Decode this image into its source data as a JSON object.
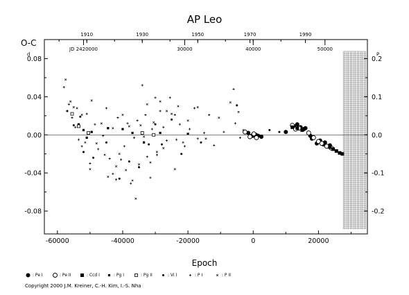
{
  "chart_data": {
    "type": "scatter",
    "title": "AP  Leo",
    "xlabel": "Epoch",
    "ylabel": "O-C",
    "xlim": [
      -64000,
      35000
    ],
    "ylim": [
      -0.104,
      0.1
    ],
    "x_ticks": [
      -60000,
      -40000,
      -20000,
      0,
      20000
    ],
    "x_tick_labels": [
      "-60000",
      "-40000",
      "-20000",
      "0",
      "20000"
    ],
    "y_ticks": [
      0.08,
      0.04,
      0.0,
      -0.04,
      -0.08
    ],
    "y_tick_labels": [
      "0.08",
      "0.04",
      "0.00",
      "-0.04",
      "-0.08"
    ],
    "y_left_superscript": "d",
    "y_right_ticks": [
      0.2,
      0.1,
      0.0,
      -0.1,
      -0.2
    ],
    "y_right_tick_labels": [
      "0.2",
      "0.1",
      "0.0",
      "-0.1",
      "-0.2"
    ],
    "y_right_superscript": "P",
    "top_year_ticks": {
      "epochs": [
        -51000,
        -34000,
        -17000,
        -1000,
        16000
      ],
      "labels": [
        "1910",
        "1930",
        "1950",
        "1970",
        "1990"
      ]
    },
    "top_jd_ticks": {
      "epochs": [
        -52000,
        -21000,
        0,
        22000
      ],
      "labels": [
        "JD 2420000",
        "30000",
        "40000",
        "50000"
      ]
    },
    "future_region_start": 27600,
    "grid": false,
    "series": [
      {
        "name": ": Pe I",
        "marker": "filled-circle",
        "points": [
          [
            -1500,
            0.002
          ],
          [
            -500,
            -0.001
          ],
          [
            0,
            -0.001
          ],
          [
            800,
            0.0
          ],
          [
            1500,
            -0.001
          ],
          [
            2500,
            -0.002
          ],
          [
            10000,
            0.003
          ],
          [
            12500,
            0.009
          ],
          [
            13500,
            0.011
          ],
          [
            14500,
            0.008
          ],
          [
            15500,
            0.006
          ],
          [
            16000,
            0.007
          ],
          [
            17500,
            -0.001
          ],
          [
            18000,
            -0.004
          ],
          [
            19500,
            -0.009
          ],
          [
            20500,
            -0.006
          ],
          [
            21500,
            -0.01
          ],
          [
            22000,
            -0.008
          ],
          [
            23500,
            -0.011
          ]
        ]
      },
      {
        "name": ": Pe II",
        "marker": "open-circle",
        "points": [
          [
            -2500,
            0.003
          ],
          [
            -1000,
            -0.002
          ],
          [
            200,
            0.001
          ],
          [
            1000,
            -0.003
          ],
          [
            12000,
            0.01
          ],
          [
            13000,
            0.006
          ],
          [
            14000,
            0.007
          ],
          [
            17000,
            0.002
          ],
          [
            18500,
            -0.003
          ],
          [
            20000,
            -0.007
          ],
          [
            21000,
            -0.009
          ],
          [
            22500,
            -0.012
          ],
          [
            24000,
            -0.014
          ]
        ]
      },
      {
        "name": ": Ccd I",
        "marker": "filled-square",
        "points": [
          [
            12000,
            0.008
          ],
          [
            13500,
            0.007
          ],
          [
            15000,
            0.005
          ],
          [
            23500,
            -0.013
          ],
          [
            24500,
            -0.015
          ],
          [
            25500,
            -0.017
          ],
          [
            26500,
            -0.019
          ],
          [
            27300,
            -0.02
          ]
        ]
      },
      {
        "name": ": Pg I",
        "marker": "small-filled-square",
        "points": [
          [
            -53500,
            0.011
          ],
          [
            -52000,
            0.005
          ],
          [
            -51000,
            -0.003
          ],
          [
            -49500,
            0.003
          ],
          [
            -44500,
            0.007
          ],
          [
            -40000,
            0.006
          ],
          [
            -37000,
            0.002
          ],
          [
            -33500,
            -0.008
          ],
          [
            -28500,
            0.002
          ],
          [
            -20000,
            0.001
          ]
        ]
      },
      {
        "name": ": Pg II",
        "marker": "open-square",
        "points": [
          [
            -55500,
            0.022
          ],
          [
            -53500,
            0.009
          ],
          [
            -50500,
            0.002
          ],
          [
            -34000,
            0.002
          ],
          [
            -30500,
            0.0
          ]
        ]
      },
      {
        "name": ": Vi I",
        "marker": "small-filled-circle",
        "points": [
          [
            -57000,
            0.025
          ],
          [
            -55000,
            0.01
          ],
          [
            -53000,
            0.019
          ],
          [
            -52000,
            -0.018
          ],
          [
            -49000,
            -0.024
          ],
          [
            -45000,
            -0.008
          ],
          [
            -41000,
            -0.046
          ],
          [
            -38000,
            -0.028
          ],
          [
            -35000,
            -0.034
          ],
          [
            -32000,
            -0.01
          ],
          [
            -30000,
            0.011
          ],
          [
            -28000,
            -0.01
          ],
          [
            -25000,
            0.016
          ],
          [
            -22000,
            -0.02
          ],
          [
            -16000,
            -0.008
          ],
          [
            -5000,
            0.031
          ],
          [
            5000,
            0.005
          ],
          [
            8000,
            0.003
          ]
        ]
      },
      {
        "name": ": P I",
        "marker": "plus",
        "points": [
          [
            -58000,
            0.05
          ],
          [
            -56500,
            0.032
          ],
          [
            -55500,
            0.018
          ],
          [
            -54500,
            0.008
          ],
          [
            -53500,
            -0.005
          ],
          [
            -52500,
            -0.012
          ],
          [
            -51000,
            0.022
          ],
          [
            -50000,
            -0.03
          ],
          [
            -48500,
            0.011
          ],
          [
            -47500,
            -0.015
          ],
          [
            -46000,
            -0.001
          ],
          [
            -45000,
            0.028
          ],
          [
            -44000,
            -0.025
          ],
          [
            -43000,
            -0.041
          ],
          [
            -42000,
            -0.047
          ],
          [
            -41500,
            0.018
          ],
          [
            -40500,
            -0.026
          ],
          [
            -39500,
            -0.012
          ],
          [
            -38500,
            0.012
          ],
          [
            -37500,
            -0.051
          ],
          [
            -36500,
            -0.003
          ],
          [
            -35500,
            0.015
          ],
          [
            -34000,
            0.052
          ],
          [
            -33000,
            0.021
          ],
          [
            -32500,
            -0.023
          ],
          [
            -31500,
            -0.045
          ],
          [
            -31000,
            0.006
          ],
          [
            -30000,
            0.039
          ],
          [
            -29500,
            -0.021
          ],
          [
            -28500,
            0.025
          ],
          [
            -27500,
            0.008
          ],
          [
            -26500,
            -0.006
          ],
          [
            -25500,
            0.039
          ],
          [
            -24000,
            0.021
          ],
          [
            -23500,
            -0.005
          ],
          [
            -22500,
            0.011
          ],
          [
            -21000,
            -0.012
          ],
          [
            -19500,
            0.006
          ],
          [
            -18000,
            0.028
          ],
          [
            -17000,
            -0.004
          ],
          [
            -15000,
            0.002
          ],
          [
            -13500,
            0.021
          ],
          [
            -12000,
            -0.011
          ],
          [
            -9000,
            0.003
          ],
          [
            -6000,
            0.048
          ],
          [
            -5500,
            0.012
          ],
          [
            -4000,
            -0.003
          ],
          [
            -3000,
            0.005
          ]
        ]
      },
      {
        "name": ": P II",
        "marker": "x",
        "points": [
          [
            -57500,
            0.058
          ],
          [
            -56000,
            0.035
          ],
          [
            -55000,
            0.029
          ],
          [
            -54000,
            0.028
          ],
          [
            -52500,
            0.021
          ],
          [
            -51500,
            -0.008
          ],
          [
            -50000,
            -0.036
          ],
          [
            -49500,
            0.036
          ],
          [
            -48000,
            -0.009
          ],
          [
            -46500,
            0.012
          ],
          [
            -45500,
            -0.021
          ],
          [
            -44500,
            -0.044
          ],
          [
            -43000,
            0.007
          ],
          [
            -42000,
            -0.033
          ],
          [
            -41000,
            -0.02
          ],
          [
            -40000,
            0.021
          ],
          [
            -39000,
            -0.037
          ],
          [
            -38000,
            0.009
          ],
          [
            -37000,
            -0.048
          ],
          [
            -36000,
            -0.067
          ],
          [
            -35000,
            -0.031
          ],
          [
            -34500,
            0.01
          ],
          [
            -33500,
            -0.002
          ],
          [
            -32500,
            0.032
          ],
          [
            -31500,
            -0.029
          ],
          [
            -30500,
            0.013
          ],
          [
            -29500,
            -0.018
          ],
          [
            -28500,
            0.035
          ],
          [
            -27500,
            -0.014
          ],
          [
            -26500,
            0.025
          ],
          [
            -25000,
            0.022
          ],
          [
            -24000,
            -0.036
          ],
          [
            -23000,
            0.03
          ],
          [
            -21500,
            -0.008
          ],
          [
            -20000,
            0.015
          ],
          [
            -17000,
            0.029
          ],
          [
            -14500,
            -0.004
          ],
          [
            -10500,
            0.018
          ],
          [
            -7000,
            0.034
          ],
          [
            -4500,
            0.024
          ]
        ]
      }
    ]
  },
  "legend": {
    "items": [
      {
        "marker": "filled-circle",
        "label": ": Pe I"
      },
      {
        "marker": "open-circle",
        "label": ": Pe II"
      },
      {
        "marker": "filled-square",
        "label": ": Ccd I"
      },
      {
        "marker": "small-filled-square",
        "label": ": Pg I"
      },
      {
        "marker": "open-square",
        "label": ": Pg II"
      },
      {
        "marker": "small-filled-circle",
        "label": ": Vi I"
      },
      {
        "marker": "plus",
        "label": ": P I"
      },
      {
        "marker": "x",
        "label": ": P II"
      }
    ]
  },
  "copyright": "Copyright 2000 J.M. Kreiner, C.-H. Kim, I.-S. Nha"
}
